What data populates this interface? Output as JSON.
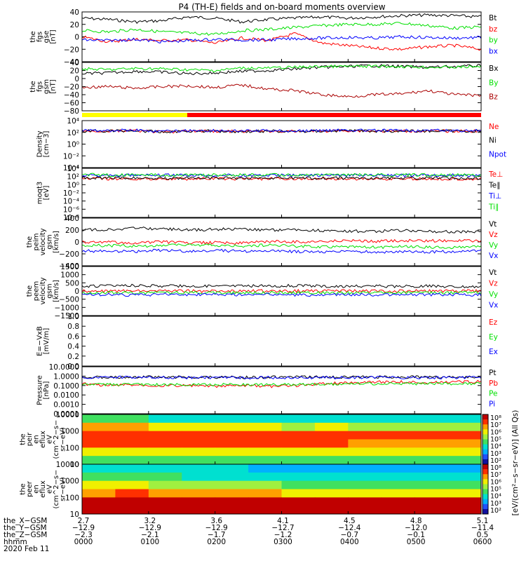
{
  "title": "P4 (TH-E) fields and on-board moments overview",
  "colors": {
    "black": "#000000",
    "red": "#ff0000",
    "green": "#00e000",
    "blue": "#0000ff",
    "darkred": "#aa0000",
    "yellow": "#ffff00"
  },
  "chart_data": [
    {
      "type": "line",
      "ylabel": [
        "the",
        "fgs",
        "gse",
        "[nT]"
      ],
      "ylim": [
        -40,
        40
      ],
      "ticks": [
        "40",
        "20",
        "0",
        "−20",
        "−40"
      ],
      "series": [
        {
          "name": "Bt",
          "color": "#000000",
          "values": [
            30,
            28,
            24,
            26,
            32,
            30,
            24,
            28,
            30,
            32,
            30,
            32,
            34,
            35,
            34,
            32
          ]
        },
        {
          "name": "bz",
          "color": "#ff0000",
          "values": [
            0,
            -8,
            -4,
            -6,
            -5,
            -10,
            -2,
            -6,
            5,
            -10,
            -14,
            -18,
            -20,
            -16,
            -14,
            -20
          ]
        },
        {
          "name": "by",
          "color": "#00e000",
          "values": [
            10,
            8,
            12,
            8,
            6,
            4,
            10,
            12,
            15,
            18,
            20,
            20,
            22,
            18,
            14,
            16
          ]
        },
        {
          "name": "bx",
          "color": "#0000ff",
          "values": [
            -5,
            -6,
            -4,
            -8,
            -6,
            -4,
            -5,
            -5,
            -3,
            -2,
            -1,
            -2,
            0,
            -1,
            -2,
            -1
          ]
        }
      ]
    },
    {
      "type": "line",
      "ylabel": [
        "the",
        "fgs",
        "gsm",
        "[nT]"
      ],
      "ylim": [
        -80,
        40
      ],
      "ticks": [
        "40",
        "20",
        "0",
        "−20",
        "−40",
        "−60",
        "−80"
      ],
      "series": [
        {
          "name": "Bx",
          "color": "#000000",
          "values": [
            12,
            14,
            18,
            16,
            12,
            14,
            18,
            20,
            24,
            28,
            30,
            32,
            30,
            28,
            30,
            32
          ]
        },
        {
          "name": "By",
          "color": "#00e000",
          "values": [
            24,
            22,
            25,
            24,
            22,
            20,
            26,
            26,
            28,
            30,
            30,
            30,
            30,
            28,
            28,
            30
          ]
        },
        {
          "name": "Bz",
          "color": "#aa0000",
          "values": [
            -22,
            -20,
            -24,
            -20,
            -18,
            -22,
            -16,
            -26,
            -30,
            -40,
            -45,
            -40,
            -38,
            -30,
            -40,
            -42
          ]
        }
      ]
    },
    {
      "type": "line",
      "ylabel": [
        "Density",
        "[cm−3]"
      ],
      "ylim": [
        -5,
        4
      ],
      "log": true,
      "ticks": [
        "10⁴",
        "10²",
        "10⁰",
        "10⁻²",
        "10⁻⁴"
      ],
      "series": [
        {
          "name": "Ne",
          "color": "#ff0000",
          "values": [
            2,
            2,
            2.1,
            1.8,
            2,
            2,
            1.9,
            2,
            1.9,
            2,
            2.1,
            2,
            2,
            2,
            2,
            2
          ]
        },
        {
          "name": "Ni",
          "color": "#000000",
          "values": [
            2,
            2,
            2.1,
            1.8,
            2,
            2,
            1.9,
            2,
            1.9,
            2,
            2.1,
            2,
            2,
            2,
            2,
            2
          ]
        },
        {
          "name": "Npot",
          "color": "#0000ff",
          "values": [
            2.1,
            2.1,
            2.2,
            1.9,
            2.1,
            2.1,
            2,
            2.1,
            2,
            2.1,
            2.2,
            2.1,
            2.1,
            2.1,
            2.1,
            2.1
          ]
        }
      ]
    },
    {
      "type": "line",
      "ylabel": [
        "moqt3",
        "[eV]"
      ],
      "ylim": [
        -9,
        5
      ],
      "log": true,
      "ticks": [
        "10⁴",
        "10²",
        "10⁰",
        "10⁻²",
        "10⁻⁴",
        "10⁻⁶",
        "10⁻⁸"
      ],
      "series": [
        {
          "name": "Te⊥",
          "color": "#ff0000",
          "values": [
            2,
            2,
            2,
            2,
            2,
            2,
            2,
            2,
            2,
            2,
            2,
            2,
            2,
            2,
            2,
            2
          ]
        },
        {
          "name": "Te∥",
          "color": "#000000",
          "values": [
            2.2,
            2.2,
            2.2,
            2.2,
            2.2,
            2.2,
            2.2,
            2.2,
            2.2,
            2.2,
            2.2,
            2.2,
            2.2,
            2.2,
            2.2,
            2.2
          ]
        },
        {
          "name": "Ti⊥",
          "color": "#0000ff",
          "values": [
            3.1,
            3,
            3,
            3,
            3,
            3,
            3,
            3,
            3,
            3,
            3,
            3,
            3,
            3,
            3,
            3
          ]
        },
        {
          "name": "Ti∥",
          "color": "#00e000",
          "values": [
            3.2,
            3.1,
            3.1,
            3.1,
            3.1,
            3.1,
            3.1,
            3.1,
            3.1,
            3.1,
            3.1,
            3.1,
            3.1,
            3.1,
            3.1,
            3.1
          ]
        }
      ]
    },
    {
      "type": "line",
      "ylabel": [
        "the",
        "peim",
        "velocity",
        "gsm",
        "[km/s]"
      ],
      "ylim": [
        -400,
        400
      ],
      "ticks": [
        "400",
        "200",
        "0",
        "−200",
        "−400"
      ],
      "series": [
        {
          "name": "Vt",
          "color": "#000000",
          "values": [
            200,
            210,
            230,
            220,
            200,
            210,
            220,
            200,
            210,
            190,
            180,
            180,
            190,
            180,
            170,
            175
          ]
        },
        {
          "name": "Vz",
          "color": "#ff0000",
          "values": [
            -10,
            0,
            -20,
            0,
            -20,
            -10,
            -20,
            10,
            0,
            10,
            20,
            10,
            20,
            20,
            20,
            20
          ]
        },
        {
          "name": "Vy",
          "color": "#00e000",
          "values": [
            -60,
            -60,
            -70,
            -60,
            -50,
            -60,
            -70,
            -50,
            -70,
            -80,
            -80,
            -90,
            -80,
            -90,
            -90,
            -80
          ]
        },
        {
          "name": "Vx",
          "color": "#0000ff",
          "values": [
            -150,
            -160,
            -160,
            -140,
            -160,
            -140,
            -160,
            -150,
            -160,
            -170,
            -160,
            -170,
            -160,
            -170,
            -160,
            -150
          ]
        }
      ]
    },
    {
      "type": "line",
      "ylabel": [
        "the",
        "peem",
        "velocity",
        "gsm",
        "[km/s]"
      ],
      "ylim": [
        -1500,
        1500
      ],
      "ticks": [
        "1500",
        "1000",
        "500",
        "0",
        "−500",
        "−1000",
        "−1500"
      ],
      "series": [
        {
          "name": "Vt",
          "color": "#000000",
          "values": [
            300,
            320,
            340,
            300,
            320,
            300,
            320,
            300,
            330,
            300,
            280,
            300,
            280,
            300,
            280,
            280
          ]
        },
        {
          "name": "Vz",
          "color": "#ff0000",
          "values": [
            0,
            -20,
            20,
            0,
            0,
            -20,
            0,
            20,
            0,
            0,
            0,
            0,
            0,
            0,
            0,
            0
          ]
        },
        {
          "name": "Vy",
          "color": "#00e000",
          "values": [
            -100,
            -100,
            -120,
            -100,
            -100,
            -100,
            -120,
            -100,
            -100,
            -120,
            -100,
            -120,
            -100,
            -120,
            -100,
            -100
          ]
        },
        {
          "name": "Vx",
          "color": "#0000ff",
          "values": [
            -200,
            -220,
            -250,
            -200,
            -220,
            -200,
            -240,
            -200,
            -230,
            -250,
            -220,
            -230,
            -220,
            -230,
            -220,
            -220
          ]
        }
      ]
    },
    {
      "type": "line",
      "ylabel": [
        "E=−VxB",
        "[mV/m]"
      ],
      "ylim": [
        0,
        1
      ],
      "ticks": [
        "1.0",
        "0.8",
        "0.6",
        "0.4",
        "0.2",
        "0.0"
      ],
      "series": [
        {
          "name": "Ez",
          "color": "#ff0000",
          "values": []
        },
        {
          "name": "Ey",
          "color": "#00e000",
          "values": []
        },
        {
          "name": "Ex",
          "color": "#0000ff",
          "values": []
        }
      ]
    },
    {
      "type": "line",
      "ylabel": [
        "Pressure",
        "[nPa]"
      ],
      "ylim": [
        -4,
        1
      ],
      "log": true,
      "ticks": [
        "10.0000",
        "1.0000",
        "0.1000",
        "0.0100",
        "0.0010",
        "0.0001"
      ],
      "series": [
        {
          "name": "Pt",
          "color": "#000000",
          "values": [
            -0.1,
            -0.1,
            -0.1,
            -0.1,
            -0.1,
            -0.1,
            -0.15,
            -0.1,
            -0.1,
            -0.1,
            -0.1,
            -0.1,
            -0.1,
            -0.1,
            -0.1,
            -0.1
          ]
        },
        {
          "name": "Pb",
          "color": "#ff0000",
          "values": [
            -0.8,
            -1,
            -0.9,
            -1,
            -1,
            -1.1,
            -1,
            -1.1,
            -1,
            -0.8,
            -0.7,
            -0.6,
            -0.6,
            -0.7,
            -0.6,
            -0.6
          ]
        },
        {
          "name": "Pe",
          "color": "#00e000",
          "values": [
            -0.9,
            -0.9,
            -0.9,
            -0.9,
            -0.9,
            -0.9,
            -0.9,
            -0.9,
            -0.9,
            -0.9,
            -0.8,
            -0.8,
            -0.8,
            -0.8,
            -0.8,
            -0.8
          ]
        },
        {
          "name": "Pi",
          "color": "#0000ff",
          "values": [
            -0.15,
            -0.15,
            -0.12,
            -0.15,
            -0.15,
            -0.15,
            -0.2,
            -0.15,
            -0.15,
            -0.15,
            -0.15,
            -0.15,
            -0.15,
            -0.15,
            -0.15,
            -0.15
          ]
        }
      ]
    },
    {
      "type": "heatmap",
      "ylabel": [
        "the",
        "peir",
        "en",
        "eflux",
        "eV",
        "(cm^2−s−",
        "sr−eV)"
      ],
      "ylim": [
        5,
        30000
      ],
      "log": true,
      "ticks": [
        "10000",
        "1000",
        "100",
        "10"
      ],
      "values": [
        [
          4,
          4,
          3,
          3,
          3,
          3,
          3,
          3,
          3,
          3,
          3,
          3
        ],
        [
          7,
          7,
          6,
          6,
          6,
          6,
          5,
          6,
          5,
          5,
          5,
          5
        ],
        [
          8,
          8,
          8,
          8,
          8,
          8,
          8,
          8,
          8,
          8,
          8,
          8
        ],
        [
          8,
          8,
          8,
          8,
          8,
          8,
          8,
          8,
          7,
          7,
          7,
          7
        ],
        [
          6,
          6,
          6,
          6,
          6,
          6,
          6,
          6,
          6,
          6,
          6,
          6
        ],
        [
          4,
          4,
          4,
          4,
          4,
          4,
          4,
          4,
          4,
          4,
          4,
          4
        ]
      ],
      "colorbar_ticks": [
        "10⁸",
        "10⁷",
        "10⁶",
        "10⁵",
        "10⁴",
        "10³",
        "10²"
      ]
    },
    {
      "type": "heatmap",
      "ylabel": [
        "the",
        "peer",
        "en",
        "eflux",
        "eV",
        "(cm^2−s−",
        "sr−eV)"
      ],
      "ylim": [
        5,
        30000
      ],
      "log": true,
      "ticks": [
        "10000",
        "1000",
        "100",
        "10"
      ],
      "values": [
        [
          3,
          3,
          3,
          3,
          3,
          2,
          2,
          2,
          2,
          2,
          2,
          2
        ],
        [
          4,
          4,
          4,
          3,
          3,
          3,
          3,
          3,
          3,
          3,
          3,
          3
        ],
        [
          6,
          6,
          5,
          5,
          5,
          5,
          4,
          4,
          4,
          4,
          4,
          4
        ],
        [
          7,
          8,
          7,
          7,
          7,
          7,
          6,
          6,
          6,
          6,
          6,
          6
        ],
        [
          9,
          9,
          9,
          9,
          9,
          9,
          9,
          9,
          9,
          9,
          9,
          9
        ],
        [
          9,
          9,
          9,
          9,
          9,
          9,
          9,
          9,
          9,
          9,
          9,
          9
        ]
      ],
      "colorbar_ticks": [
        "10⁸",
        "10⁷",
        "10⁶",
        "10⁵",
        "10⁴",
        "10³",
        "10²"
      ]
    }
  ],
  "colorbar_label": "[eV/(cm²−s−sr−eV)] (All Qs)",
  "axis": {
    "labels": [
      "the_X−GSM",
      "the_Y−GSM",
      "the_Z−GSM",
      "hhmm",
      "2020 Feb 11"
    ],
    "columns": [
      [
        "2.7",
        "−12.9",
        "−2.3",
        "0000"
      ],
      [
        "3.2",
        "−12.9",
        "−2.1",
        "0100"
      ],
      [
        "3.6",
        "−12.9",
        "−1.7",
        "0200"
      ],
      [
        "4.1",
        "−12.7",
        "−1.2",
        "0300"
      ],
      [
        "4.5",
        "−12.4",
        "−0.7",
        "0400"
      ],
      [
        "4.8",
        "−12.0",
        "−0.1",
        "0500"
      ],
      [
        "5.1",
        "−11.4",
        "0.5",
        "0600"
      ]
    ]
  }
}
